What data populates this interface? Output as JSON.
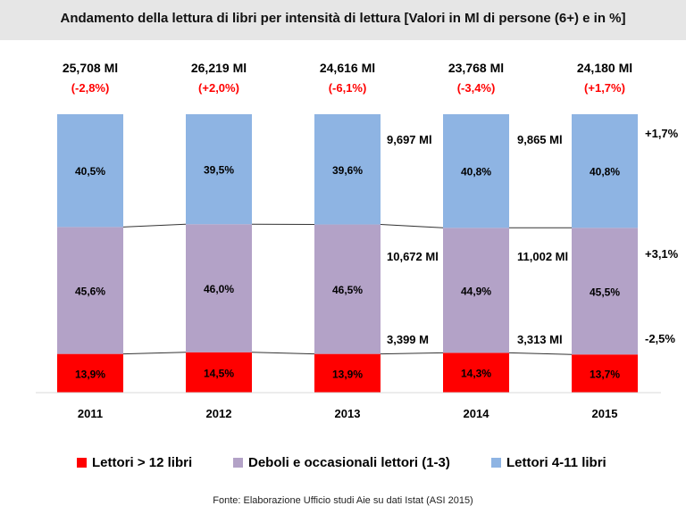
{
  "title": "Andamento della lettura di libri per intensità di lettura [Valori in Ml di persone (6+) e in %]",
  "source": "Fonte: Elaborazione Ufficio studi Aie su dati Istat (ASI 2015)",
  "colors": {
    "heavy": "#ff0000",
    "occasional": "#b3a2c7",
    "regular": "#8eb4e3",
    "change": "#ff0000",
    "connector": "#333333"
  },
  "chart_data": {
    "type": "bar",
    "stacked": "percent",
    "categories": [
      "2011",
      "2012",
      "2013",
      "2014",
      "2015"
    ],
    "totals": [
      "25,708 Ml",
      "26,219 Ml",
      "24,616 Ml",
      "23,768 Ml",
      "24,180 Ml"
    ],
    "total_changes": [
      "(-2,8%)",
      "(+2,0%)",
      "(-6,1%)",
      "(-3,4%)",
      "(+1,7%)"
    ],
    "series": [
      {
        "key": "heavy",
        "name": "Lettori > 12 libri",
        "values": [
          13.9,
          14.5,
          13.9,
          14.3,
          13.7
        ],
        "labels": [
          "13,9%",
          "14,5%",
          "13,9%",
          "14,3%",
          "13,7%"
        ]
      },
      {
        "key": "occasional",
        "name": "Deboli e occasionali lettori (1-3)",
        "values": [
          45.6,
          46.0,
          46.5,
          44.9,
          45.5
        ],
        "labels": [
          "45,6%",
          "46,0%",
          "46,5%",
          "44,9%",
          "45,5%"
        ]
      },
      {
        "key": "regular",
        "name": "Lettori 4-11 libri",
        "values": [
          40.5,
          39.5,
          39.6,
          40.8,
          40.8
        ],
        "labels": [
          "40,5%",
          "39,5%",
          "39,6%",
          "40,8%",
          "40,8%"
        ]
      }
    ],
    "annotations": {
      "y2014": {
        "regular": "9,697 Ml",
        "occasional": "10,672 Ml",
        "heavy": "3,399 M"
      },
      "y2015": {
        "regular": "9,865 Ml",
        "occasional": "11,002 Ml",
        "heavy": "3,313 Ml"
      },
      "changes": {
        "regular": "+1,7%",
        "occasional": "+3,1%",
        "heavy": "-2,5%"
      }
    },
    "ylim": [
      0,
      100
    ],
    "grid": false,
    "legend_position": "bottom"
  }
}
